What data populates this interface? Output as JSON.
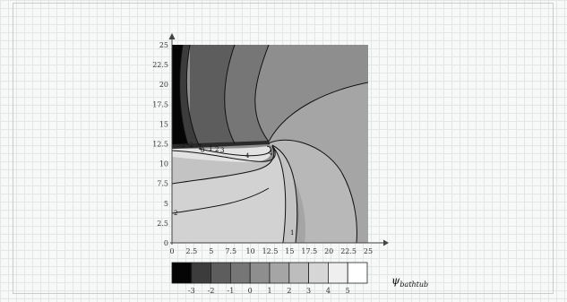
{
  "chart_data": {
    "type": "heatmap",
    "title": "",
    "xlabel": "",
    "ylabel": "",
    "xlim": [
      0,
      25
    ],
    "ylim": [
      0,
      25
    ],
    "x_ticks": [
      "0",
      "2.5",
      "5",
      "7.5",
      "10",
      "12.5",
      "15",
      "17.5",
      "20",
      "22.5",
      "25"
    ],
    "y_ticks": [
      "0",
      "2.5",
      "5",
      "7.5",
      "10",
      "12.5",
      "15",
      "17.5",
      "20",
      "22.5",
      "25"
    ],
    "contour_levels": [
      -3,
      -2,
      -1,
      0,
      1,
      2,
      3,
      4,
      5
    ],
    "contour_line_labels": [
      "-3",
      "-2",
      "-1",
      "0",
      "1",
      "2",
      "3",
      "4",
      "4",
      "2",
      "1"
    ],
    "colorbar": {
      "tick_labels": [
        "-3",
        "-2",
        "-1",
        "0",
        "1",
        "2",
        "3",
        "4",
        "5"
      ],
      "colors": [
        "#050505",
        "#3c3c3c",
        "#5d5d5d",
        "#767676",
        "#8e8e8e",
        "#a5a5a5",
        "#bdbdbd",
        "#d6d6d6",
        "#efefef",
        "#ffffff"
      ],
      "variable_symbol": "ψ",
      "variable_subscript": "bathtub"
    },
    "grid": true
  }
}
